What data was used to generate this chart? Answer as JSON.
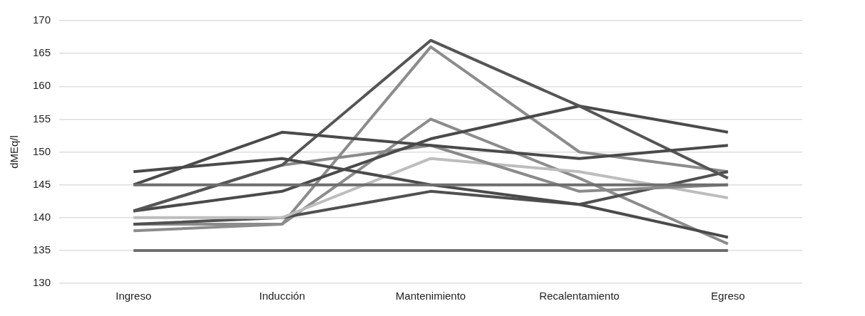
{
  "chart_data": {
    "type": "line",
    "ylabel": "dMEq/l",
    "categories": [
      "Ingreso",
      "Inducción",
      "Mantenimiento",
      "Recalentamiento",
      "Egreso"
    ],
    "series": [
      {
        "color": "#6e6e6e",
        "values": [
          145,
          145,
          145,
          145,
          145
        ]
      },
      {
        "color": "#6e6e6e",
        "values": [
          135,
          135,
          135,
          135,
          135
        ]
      },
      {
        "color": "#4a4a4a",
        "values": [
          147,
          149,
          145,
          142,
          137
        ]
      },
      {
        "color": "#4a4a4a",
        "values": [
          145,
          153,
          151,
          149,
          151
        ]
      },
      {
        "color": "#555555",
        "values": [
          141,
          148,
          167,
          157,
          146
        ]
      },
      {
        "color": "#4a4a4a",
        "values": [
          141,
          144,
          152,
          157,
          153
        ]
      },
      {
        "color": "#8a8a8a",
        "values": [
          141,
          148,
          151,
          144,
          145
        ]
      },
      {
        "color": "#bdbdbd",
        "values": [
          140,
          140,
          149,
          147,
          143
        ]
      },
      {
        "color": "#505050",
        "values": [
          139,
          140,
          144,
          142,
          147
        ]
      },
      {
        "color": "#8c8c8c",
        "values": [
          138,
          139,
          166,
          150,
          147
        ]
      },
      {
        "color": "#8c8c8c",
        "values": [
          139,
          139,
          155,
          146,
          136
        ]
      }
    ],
    "ylim": [
      130,
      170
    ],
    "yticks": [
      130,
      135,
      140,
      145,
      150,
      155,
      160,
      165,
      170
    ],
    "grid": "y",
    "legend": false,
    "marker": "none",
    "line_style": "solid"
  }
}
